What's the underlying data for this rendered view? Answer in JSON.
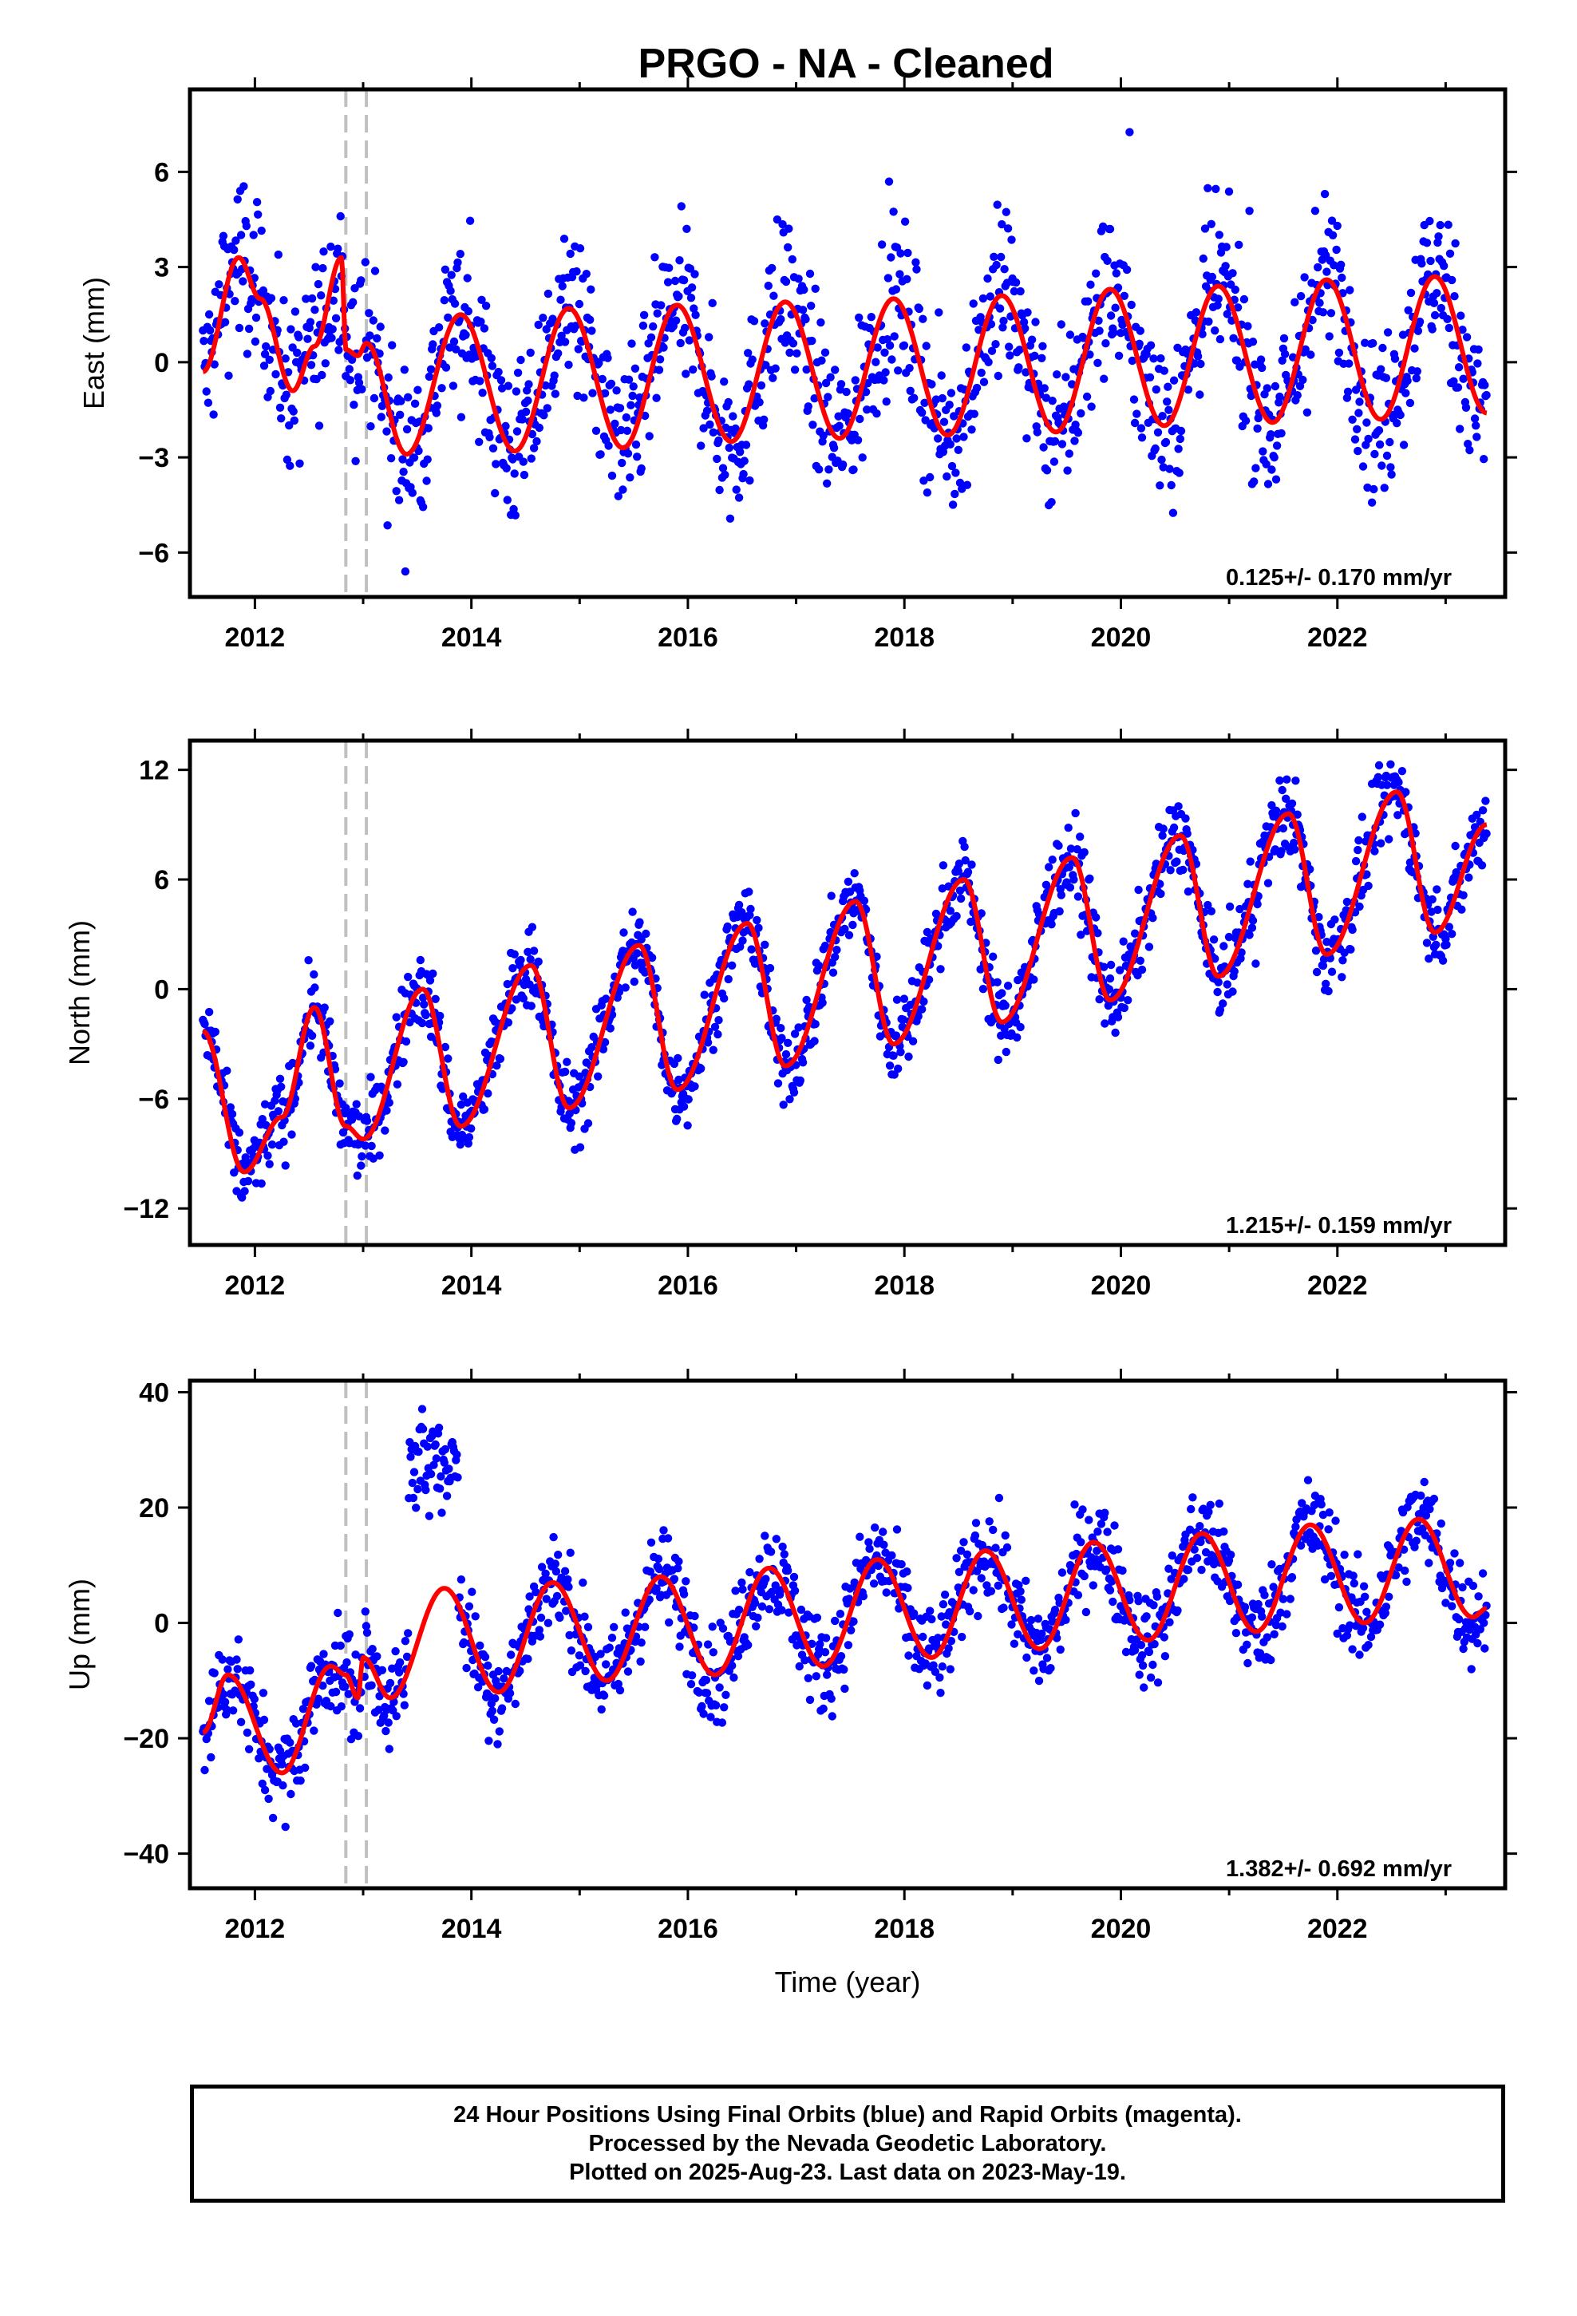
{
  "title": "PRGO  - NA - Cleaned",
  "footer": {
    "line1": "24 Hour Positions Using Final Orbits (blue) and Rapid Orbits (magenta).",
    "line2": "Processed by the Nevada Geodetic Laboratory.",
    "line3": "Plotted on 2025-Aug-23. Last data on 2023-May-19."
  },
  "colors": {
    "observations": "#0000ff",
    "model": "#ff0000",
    "steps": "#c0c0c0",
    "frame": "#000000"
  },
  "chart_data": [
    {
      "type": "scatter",
      "ylabel": "East (mm)",
      "xlabel": "",
      "xlim": [
        2011.4,
        2023.55
      ],
      "ylim": [
        -7.4,
        8.6
      ],
      "xticks": [
        2012,
        2014,
        2016,
        2018,
        2020,
        2022
      ],
      "yticks": [
        -6,
        -3,
        0,
        3,
        6
      ],
      "ytick_labels": [
        "−6",
        "−3",
        "0",
        "3",
        "6"
      ],
      "rate": "0.125+/- 0.170 mm/yr",
      "steps": [
        2012.84,
        2013.03
      ],
      "data_range": [
        2011.52,
        2023.38
      ],
      "series": [
        {
          "values": [
            [
              2011.52,
              -0.3
            ],
            [
              2011.85,
              3.3
            ],
            [
              2012.05,
              2.0
            ],
            [
              2012.35,
              -0.9
            ],
            [
              2012.55,
              0.5
            ],
            [
              2012.8,
              3.3
            ],
            [
              2012.84,
              0.4
            ],
            [
              2012.95,
              0.2
            ],
            [
              2013.03,
              0.6
            ],
            [
              2013.4,
              -2.9
            ],
            [
              2013.9,
              1.5
            ],
            [
              2014.4,
              -2.8
            ],
            [
              2014.9,
              1.7
            ],
            [
              2015.4,
              -2.7
            ],
            [
              2015.9,
              1.8
            ],
            [
              2016.4,
              -2.5
            ],
            [
              2016.9,
              1.9
            ],
            [
              2017.4,
              -2.4
            ],
            [
              2017.9,
              2.0
            ],
            [
              2018.4,
              -2.3
            ],
            [
              2018.9,
              2.1
            ],
            [
              2019.4,
              -2.2
            ],
            [
              2019.9,
              2.3
            ],
            [
              2020.4,
              -2.0
            ],
            [
              2020.9,
              2.4
            ],
            [
              2021.4,
              -1.9
            ],
            [
              2021.9,
              2.6
            ],
            [
              2022.4,
              -1.8
            ],
            [
              2022.9,
              2.7
            ],
            [
              2023.38,
              -1.6
            ]
          ]
        }
      ]
    },
    {
      "type": "scatter",
      "ylabel": "North (mm)",
      "xlabel": "",
      "xlim": [
        2011.4,
        2023.55
      ],
      "ylim": [
        -14.0,
        13.6
      ],
      "xticks": [
        2012,
        2014,
        2016,
        2018,
        2020,
        2022
      ],
      "yticks": [
        -12,
        -6,
        0,
        6,
        12
      ],
      "ytick_labels": [
        "−12",
        "−6",
        "0",
        "6",
        "12"
      ],
      "rate": "1.215+/- 0.159 mm/yr",
      "steps": [
        2012.84,
        2013.03
      ],
      "data_range": [
        2011.52,
        2023.38
      ],
      "series": [
        {
          "values": [
            [
              2011.52,
              -2.3
            ],
            [
              2011.9,
              -10.0
            ],
            [
              2012.25,
              -7.0
            ],
            [
              2012.55,
              -1.0
            ],
            [
              2012.84,
              -7.5
            ],
            [
              2013.0,
              -8.2
            ],
            [
              2013.55,
              0.0
            ],
            [
              2013.9,
              -7.5
            ],
            [
              2014.55,
              1.3
            ],
            [
              2014.9,
              -6.5
            ],
            [
              2015.55,
              2.4
            ],
            [
              2015.9,
              -5.5
            ],
            [
              2016.55,
              3.6
            ],
            [
              2016.9,
              -4.2
            ],
            [
              2017.55,
              4.8
            ],
            [
              2017.9,
              -3.0
            ],
            [
              2018.55,
              6.0
            ],
            [
              2018.9,
              -1.8
            ],
            [
              2019.55,
              7.2
            ],
            [
              2019.9,
              -0.6
            ],
            [
              2020.55,
              8.4
            ],
            [
              2020.9,
              0.7
            ],
            [
              2021.55,
              9.6
            ],
            [
              2021.9,
              1.9
            ],
            [
              2022.55,
              10.8
            ],
            [
              2022.9,
              3.1
            ],
            [
              2023.38,
              9.0
            ]
          ]
        }
      ]
    },
    {
      "type": "scatter",
      "ylabel": "Up (mm)",
      "xlabel": "Time (year)",
      "xlim": [
        2011.4,
        2023.55
      ],
      "ylim": [
        -46,
        42
      ],
      "xticks": [
        2012,
        2014,
        2016,
        2018,
        2020,
        2022
      ],
      "yticks": [
        -40,
        -20,
        0,
        20,
        40
      ],
      "ytick_labels": [
        "−40",
        "−20",
        "0",
        "20",
        "40"
      ],
      "rate": "1.382+/- 0.692 mm/yr",
      "steps": [
        2012.84,
        2013.03
      ],
      "data_range": [
        2011.52,
        2023.38
      ],
      "outlier_segment": {
        "x": [
          2013.42,
          2013.88
        ],
        "y_center": 28
      },
      "series": [
        {
          "values": [
            [
              2011.52,
              -19.0
            ],
            [
              2011.75,
              -9.0
            ],
            [
              2012.25,
              -26.0
            ],
            [
              2012.7,
              -7.5
            ],
            [
              2012.84,
              -9.0
            ],
            [
              2012.95,
              -13.0
            ],
            [
              2013.0,
              -6.0
            ],
            [
              2013.25,
              -13.0
            ],
            [
              2013.75,
              6.0
            ],
            [
              2014.25,
              -12.0
            ],
            [
              2014.75,
              7.0
            ],
            [
              2015.25,
              -10.0
            ],
            [
              2015.75,
              8.0
            ],
            [
              2016.25,
              -9.0
            ],
            [
              2016.75,
              9.5
            ],
            [
              2017.25,
              -7.5
            ],
            [
              2017.75,
              11.0
            ],
            [
              2018.25,
              -6.0
            ],
            [
              2018.75,
              12.5
            ],
            [
              2019.25,
              -4.5
            ],
            [
              2019.75,
              14.0
            ],
            [
              2020.25,
              -3.0
            ],
            [
              2020.75,
              15.5
            ],
            [
              2021.25,
              -1.5
            ],
            [
              2021.75,
              17.0
            ],
            [
              2022.25,
              0.0
            ],
            [
              2022.75,
              18.0
            ],
            [
              2023.25,
              1.0
            ],
            [
              2023.38,
              2.5
            ]
          ]
        }
      ]
    }
  ]
}
